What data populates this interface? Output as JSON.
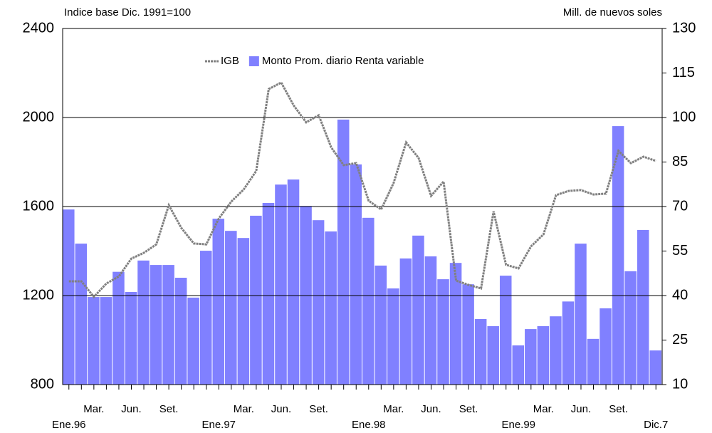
{
  "chart_data": {
    "type": "bar-line",
    "y_label": "Indice base Dic. 1991=100",
    "y2_label": "Mill. de nuevos soles",
    "categories": [
      "Ene.96",
      null,
      "Mar.",
      null,
      null,
      "Jun.",
      null,
      null,
      "Set.",
      null,
      null,
      null,
      "Ene.97",
      null,
      "Mar.",
      null,
      null,
      "Jun.",
      null,
      null,
      "Set.",
      null,
      null,
      null,
      "Ene.98",
      null,
      "Mar.",
      null,
      null,
      "Jun.",
      null,
      null,
      "Set.",
      null,
      null,
      null,
      "Ene.99",
      null,
      "Mar.",
      null,
      null,
      "Jun.",
      null,
      null,
      "Set.",
      null,
      null,
      "Dic.7"
    ],
    "series": [
      {
        "name": "Monto Prom. diario Renta variable",
        "type": "bar",
        "axis": "y2",
        "color": "#8080ff",
        "values": [
          69,
          57.5,
          39.5,
          39.5,
          48,
          41.2,
          51.8,
          50.3,
          50.3,
          46,
          39.3,
          55.1,
          65.9,
          61.8,
          59.4,
          66.9,
          71.2,
          77.4,
          79.1,
          70.2,
          65.4,
          61.6,
          99.3,
          84.2,
          66.2,
          50.1,
          42.4,
          52.5,
          60.2,
          53.2,
          45.5,
          51,
          43.8,
          32.1,
          29.7,
          46.7,
          23.2,
          28.7,
          29.7,
          33,
          38,
          57.5,
          25.4,
          35.7,
          97.1,
          48.2,
          62.1,
          21.5
        ]
      },
      {
        "name": "IGB",
        "type": "line",
        "axis": "y",
        "color": "#808080",
        "values": [
          1264,
          1264,
          1194,
          1254,
          1286,
          1366,
          1392,
          1430,
          1606,
          1504,
          1434,
          1430,
          1546,
          1622,
          1677,
          1760,
          2128,
          2157,
          2054,
          1978,
          2010,
          1866,
          1786,
          1795,
          1626,
          1587,
          1706,
          1888,
          1818,
          1648,
          1712,
          1267,
          1248,
          1232,
          1578,
          1338,
          1322,
          1421,
          1475,
          1651,
          1670,
          1674,
          1654,
          1658,
          1850,
          1795,
          1824,
          1805
        ]
      }
    ],
    "ylim": [
      800,
      2400
    ],
    "yticks": [
      800,
      1200,
      1600,
      2000,
      2400
    ],
    "y2lim": [
      10,
      130
    ],
    "y2ticks": [
      10,
      25,
      40,
      55,
      70,
      85,
      100,
      115,
      130
    ],
    "grid": true,
    "legend": "top"
  }
}
